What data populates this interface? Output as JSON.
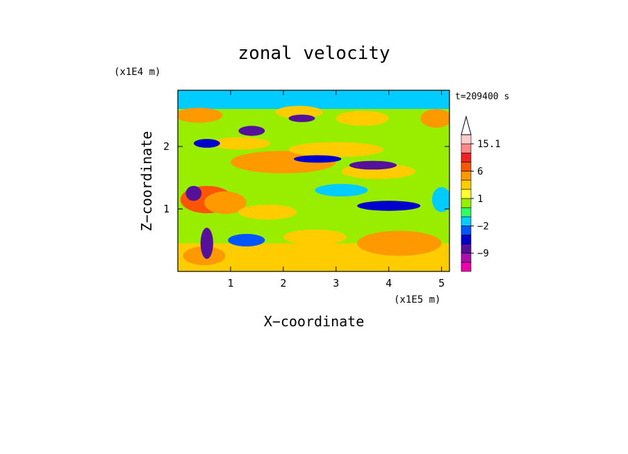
{
  "chart_data": {
    "type": "heatmap",
    "title": "zonal velocity",
    "xlabel": "X−coordinate",
    "ylabel": "Z−coordinate",
    "x_unit": "(x1E5 m)",
    "y_unit": "(x1E4 m)",
    "time_label": "t=209400 s",
    "xlim": [
      0.0,
      5.15
    ],
    "ylim": [
      0.0,
      2.9
    ],
    "x_ticks": [
      1,
      2,
      3,
      4,
      5
    ],
    "y_ticks": [
      1,
      2
    ],
    "x_tick_labels": [
      "1",
      "2",
      "3",
      "4",
      "5"
    ],
    "y_tick_labels": [
      "1",
      "2"
    ],
    "colorbar": {
      "levels": [
        -15,
        -12,
        -9,
        -6,
        -4,
        -2,
        -1,
        0,
        1,
        2,
        4,
        6,
        9,
        12,
        15.1
      ],
      "labels": [
        {
          "value": 15.1,
          "text": "15.1"
        },
        {
          "value": 6,
          "text": "6"
        },
        {
          "value": 1,
          "text": "1"
        },
        {
          "value": -2,
          "text": "−2"
        },
        {
          "value": -9,
          "text": "−9"
        }
      ],
      "colors": [
        "#ee00aa",
        "#aa11aa",
        "#551199",
        "#0000cc",
        "#0055ff",
        "#00ccff",
        "#33ff66",
        "#99ee00",
        "#ffff33",
        "#ffcc00",
        "#ff9900",
        "#ff5500",
        "#ee2222",
        "#ff8888",
        "#ffcccc"
      ]
    },
    "features": [
      {
        "kind": "band",
        "x1": 0.0,
        "x2": 5.15,
        "z1": 0.0,
        "z2": 0.45,
        "value": 2,
        "name": "lower-yellow-band"
      },
      {
        "kind": "band",
        "x1": 0.0,
        "x2": 5.15,
        "z1": 1.6,
        "z2": 2.1,
        "value": 0.5,
        "name": "mid-green-band"
      },
      {
        "kind": "band",
        "x1": 0.0,
        "x2": 5.15,
        "z1": 2.6,
        "z2": 2.9,
        "value": -1.5,
        "name": "top-cyan-band"
      },
      {
        "kind": "blob",
        "x": 0.55,
        "z": 1.15,
        "rx": 0.5,
        "rz": 0.22,
        "value": 8,
        "name": "red-core"
      },
      {
        "kind": "blob",
        "x": 0.9,
        "z": 1.1,
        "rx": 0.4,
        "rz": 0.18,
        "value": 5,
        "name": "orange-core"
      },
      {
        "kind": "blob",
        "x": 2.0,
        "z": 1.75,
        "rx": 1.0,
        "rz": 0.18,
        "value": 4,
        "name": "orange-tilted-band"
      },
      {
        "kind": "blob",
        "x": 3.0,
        "z": 1.95,
        "rx": 0.9,
        "rz": 0.12,
        "value": 3,
        "name": "orange-upper-right"
      },
      {
        "kind": "blob",
        "x": 0.4,
        "z": 2.5,
        "rx": 0.45,
        "rz": 0.12,
        "value": 5,
        "name": "orange-top-left"
      },
      {
        "kind": "blob",
        "x": 4.9,
        "z": 2.45,
        "rx": 0.3,
        "rz": 0.15,
        "value": 5,
        "name": "orange-top-right"
      },
      {
        "kind": "blob",
        "x": 3.5,
        "z": 2.45,
        "rx": 0.5,
        "rz": 0.12,
        "value": 3,
        "name": "yellow-top-mid"
      },
      {
        "kind": "blob",
        "x": 2.3,
        "z": 2.55,
        "rx": 0.45,
        "rz": 0.1,
        "value": 2,
        "name": "yellow-top-center"
      },
      {
        "kind": "blob",
        "x": 4.2,
        "z": 0.45,
        "rx": 0.8,
        "rz": 0.2,
        "value": 4,
        "name": "orange-bottom-right"
      },
      {
        "kind": "blob",
        "x": 2.6,
        "z": 0.55,
        "rx": 0.6,
        "rz": 0.12,
        "value": 3,
        "name": "orange-bottom-mid"
      },
      {
        "kind": "blob",
        "x": 0.5,
        "z": 0.25,
        "rx": 0.4,
        "rz": 0.15,
        "value": 4,
        "name": "orange-bottom-left"
      },
      {
        "kind": "blob",
        "x": 3.8,
        "z": 1.6,
        "rx": 0.7,
        "rz": 0.12,
        "value": 2,
        "name": "yellow-right-mid"
      },
      {
        "kind": "blob",
        "x": 1.2,
        "z": 2.05,
        "rx": 0.55,
        "rz": 0.1,
        "value": 2.5,
        "name": "yellow-left-upper"
      },
      {
        "kind": "blob",
        "x": 1.7,
        "z": 0.95,
        "rx": 0.55,
        "rz": 0.12,
        "value": 2,
        "name": "yellow-center-lower"
      },
      {
        "kind": "blob",
        "x": 4.0,
        "z": 1.05,
        "rx": 0.6,
        "rz": 0.08,
        "value": -6,
        "name": "blue-streak-right-lower"
      },
      {
        "kind": "blob",
        "x": 3.7,
        "z": 1.7,
        "rx": 0.45,
        "rz": 0.07,
        "value": -7,
        "name": "blue-streak-right-mid"
      },
      {
        "kind": "blob",
        "x": 2.65,
        "z": 1.8,
        "rx": 0.45,
        "rz": 0.06,
        "value": -5,
        "name": "blue-streak-center"
      },
      {
        "kind": "blob",
        "x": 2.35,
        "z": 2.45,
        "rx": 0.25,
        "rz": 0.06,
        "value": -7,
        "name": "blue-top-center"
      },
      {
        "kind": "blob",
        "x": 1.4,
        "z": 2.25,
        "rx": 0.25,
        "rz": 0.08,
        "value": -7,
        "name": "blue-top-left"
      },
      {
        "kind": "blob",
        "x": 0.55,
        "z": 2.05,
        "rx": 0.25,
        "rz": 0.07,
        "value": -5,
        "name": "blue-left-upper"
      },
      {
        "kind": "blob",
        "x": 0.3,
        "z": 1.25,
        "rx": 0.15,
        "rz": 0.12,
        "value": -8,
        "name": "blue-left-core"
      },
      {
        "kind": "blob",
        "x": 0.55,
        "z": 0.45,
        "rx": 0.12,
        "rz": 0.25,
        "value": -8,
        "name": "blue-left-bottom"
      },
      {
        "kind": "blob",
        "x": 1.3,
        "z": 0.5,
        "rx": 0.35,
        "rz": 0.1,
        "value": -3,
        "name": "cyan-bottom-left"
      },
      {
        "kind": "blob",
        "x": 5.0,
        "z": 1.15,
        "rx": 0.18,
        "rz": 0.2,
        "value": -2,
        "name": "cyan-right-edge"
      },
      {
        "kind": "blob",
        "x": 3.1,
        "z": 1.3,
        "rx": 0.5,
        "rz": 0.1,
        "value": -1.5,
        "name": "cyan-center"
      }
    ]
  }
}
